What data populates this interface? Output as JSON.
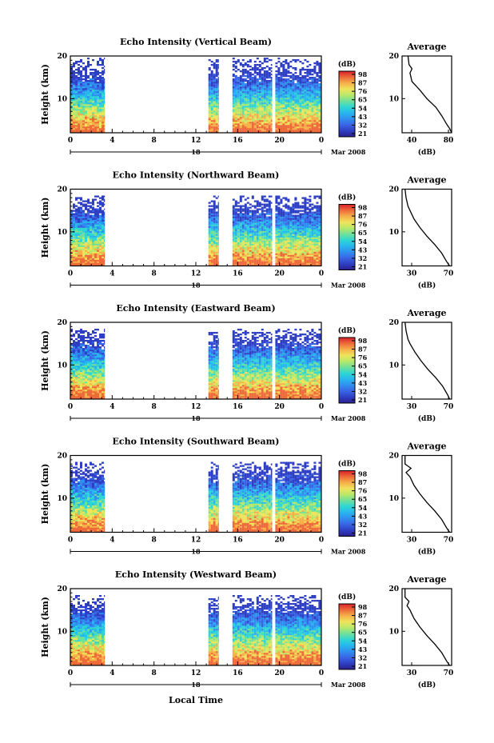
{
  "colors": {
    "colormap": [
      "#2a1f8c",
      "#2e3fc4",
      "#3a64e6",
      "#2f8ff0",
      "#28b6ee",
      "#2fd6d3",
      "#6fe09a",
      "#b8e86a",
      "#f0e45a",
      "#f6b04a",
      "#ee6a3a",
      "#d8202a"
    ]
  },
  "common": {
    "colorbar_unit": "(dB)",
    "colorbar_ticks": [
      "98",
      "87",
      "76",
      "65",
      "54",
      "43",
      "32",
      "21"
    ],
    "date_label": "Mar 2008",
    "day_label": "18",
    "xticks": [
      "0",
      "4",
      "8",
      "12",
      "16",
      "20",
      "0"
    ],
    "yticks": [
      "20",
      "10"
    ],
    "height_label": "Height (km)",
    "avg_title": "Average",
    "avg_xlabel": "(dB)",
    "xlabel": "Local Time"
  },
  "chart_data": [
    {
      "type": "heatmap",
      "title": "Echo Intensity (Vertical Beam)",
      "ylabel": "Height (km)",
      "xlim": [
        0,
        24
      ],
      "ylim": [
        2,
        20
      ],
      "data_intervals_hours": [
        [
          0,
          3.3
        ],
        [
          13.2,
          14.2
        ],
        [
          15.5,
          19.3
        ],
        [
          19.6,
          24
        ]
      ],
      "colorbar_ticks": [
        "98",
        "87",
        "76",
        "65",
        "54",
        "43",
        "32",
        "21"
      ],
      "average": {
        "xticks": [
          "40",
          "80"
        ],
        "xlim": [
          30,
          80
        ],
        "yticks": [
          "20",
          "10"
        ],
        "profile": [
          [
            80,
            2
          ],
          [
            78,
            3
          ],
          [
            75,
            4
          ],
          [
            70,
            6
          ],
          [
            64,
            8
          ],
          [
            55,
            10
          ],
          [
            48,
            12
          ],
          [
            44,
            13
          ],
          [
            40,
            14
          ],
          [
            38,
            16
          ],
          [
            40,
            17
          ],
          [
            37,
            18
          ],
          [
            36,
            20
          ]
        ]
      }
    },
    {
      "type": "heatmap",
      "title": "Echo Intensity (Northward Beam)",
      "ylabel": "Height (km)",
      "xlim": [
        0,
        24
      ],
      "ylim": [
        2,
        20
      ],
      "data_intervals_hours": [
        [
          0,
          3.3
        ],
        [
          13.2,
          14.2
        ],
        [
          15.5,
          19.3
        ],
        [
          19.6,
          24
        ]
      ],
      "colorbar_ticks": [
        "98",
        "87",
        "76",
        "65",
        "54",
        "43",
        "32",
        "21"
      ],
      "average": {
        "xticks": [
          "30",
          "70"
        ],
        "xlim": [
          30,
          80
        ],
        "yticks": [
          "20",
          "10"
        ],
        "profile": [
          [
            78,
            2
          ],
          [
            75,
            3
          ],
          [
            70,
            5
          ],
          [
            63,
            7
          ],
          [
            55,
            9
          ],
          [
            48,
            11
          ],
          [
            42,
            13
          ],
          [
            38,
            15
          ],
          [
            36,
            16
          ],
          [
            34,
            18
          ],
          [
            33,
            20
          ]
        ]
      }
    },
    {
      "type": "heatmap",
      "title": "Echo Intensity (Eastward Beam)",
      "ylabel": "Height (km)",
      "xlim": [
        0,
        24
      ],
      "ylim": [
        2,
        20
      ],
      "data_intervals_hours": [
        [
          0,
          3.3
        ],
        [
          13.2,
          14.2
        ],
        [
          15.5,
          19.3
        ],
        [
          19.6,
          24
        ]
      ],
      "colorbar_ticks": [
        "98",
        "87",
        "76",
        "65",
        "54",
        "43",
        "32",
        "21"
      ],
      "average": {
        "xticks": [
          "30",
          "70"
        ],
        "xlim": [
          30,
          80
        ],
        "yticks": [
          "20",
          "10"
        ],
        "profile": [
          [
            78,
            2
          ],
          [
            76,
            3
          ],
          [
            71,
            5
          ],
          [
            64,
            7
          ],
          [
            56,
            9
          ],
          [
            49,
            11
          ],
          [
            43,
            13
          ],
          [
            38,
            15
          ],
          [
            36,
            16
          ],
          [
            34,
            18
          ],
          [
            33,
            20
          ]
        ]
      }
    },
    {
      "type": "heatmap",
      "title": "Echo Intensity (Southward Beam)",
      "ylabel": "Height (km)",
      "xlim": [
        0,
        24
      ],
      "ylim": [
        2,
        20
      ],
      "data_intervals_hours": [
        [
          0,
          3.3
        ],
        [
          13.2,
          14.2
        ],
        [
          15.5,
          19.3
        ],
        [
          19.6,
          24
        ]
      ],
      "colorbar_ticks": [
        "98",
        "87",
        "76",
        "65",
        "54",
        "43",
        "32",
        "21"
      ],
      "average": {
        "xticks": [
          "30",
          "70"
        ],
        "xlim": [
          30,
          80
        ],
        "yticks": [
          "20",
          "10"
        ],
        "profile": [
          [
            78,
            2
          ],
          [
            75,
            3
          ],
          [
            70,
            5
          ],
          [
            63,
            7
          ],
          [
            55,
            9
          ],
          [
            48,
            11
          ],
          [
            42,
            13
          ],
          [
            38,
            15
          ],
          [
            34,
            16
          ],
          [
            39,
            17
          ],
          [
            33,
            18
          ],
          [
            33,
            20
          ]
        ]
      }
    },
    {
      "type": "heatmap",
      "title": "Echo Intensity (Westward Beam)",
      "ylabel": "Height (km)",
      "xlim": [
        0,
        24
      ],
      "ylim": [
        2,
        20
      ],
      "data_intervals_hours": [
        [
          0,
          3.3
        ],
        [
          13.2,
          14.2
        ],
        [
          15.5,
          19.3
        ],
        [
          19.6,
          24
        ]
      ],
      "colorbar_ticks": [
        "98",
        "87",
        "76",
        "65",
        "54",
        "43",
        "32",
        "21"
      ],
      "average": {
        "xticks": [
          "30",
          "70"
        ],
        "xlim": [
          30,
          80
        ],
        "yticks": [
          "20",
          "10"
        ],
        "profile": [
          [
            78,
            2
          ],
          [
            75,
            3
          ],
          [
            70,
            5
          ],
          [
            63,
            7
          ],
          [
            55,
            9
          ],
          [
            48,
            11
          ],
          [
            42,
            13
          ],
          [
            38,
            15
          ],
          [
            35,
            16
          ],
          [
            37,
            17
          ],
          [
            33,
            18
          ],
          [
            33,
            20
          ]
        ]
      }
    }
  ]
}
